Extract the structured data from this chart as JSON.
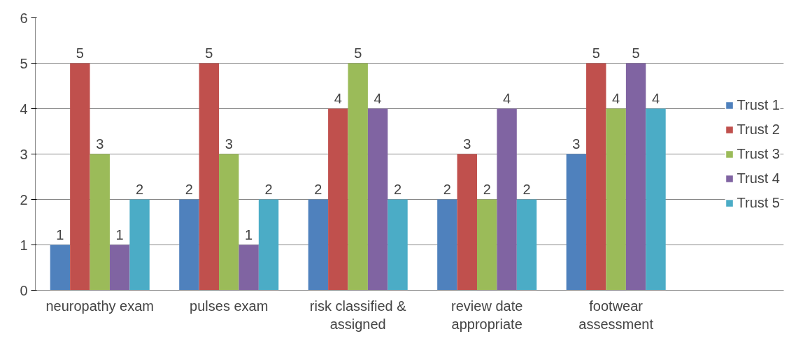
{
  "chart_data": {
    "type": "bar",
    "categories": [
      "neuropathy exam",
      "pulses exam",
      "risk classified & assigned",
      "review date appropriate",
      "footwear assessment"
    ],
    "series": [
      {
        "name": "Trust 1",
        "color": "#4f81bd",
        "values": [
          1,
          2,
          2,
          2,
          3
        ]
      },
      {
        "name": "Trust 2",
        "color": "#c0504d",
        "values": [
          5,
          5,
          4,
          3,
          5
        ]
      },
      {
        "name": "Trust 3",
        "color": "#9bbb59",
        "values": [
          3,
          3,
          5,
          2,
          4
        ]
      },
      {
        "name": "Trust 4",
        "color": "#8064a2",
        "values": [
          1,
          1,
          4,
          4,
          5
        ]
      },
      {
        "name": "Trust 5",
        "color": "#4bacc6",
        "values": [
          2,
          2,
          2,
          2,
          4
        ]
      }
    ],
    "ylim": [
      0,
      6
    ],
    "yticks": [
      0,
      1,
      2,
      3,
      4,
      5,
      6
    ],
    "grid": "y",
    "legend": "right",
    "data_labels": true
  }
}
